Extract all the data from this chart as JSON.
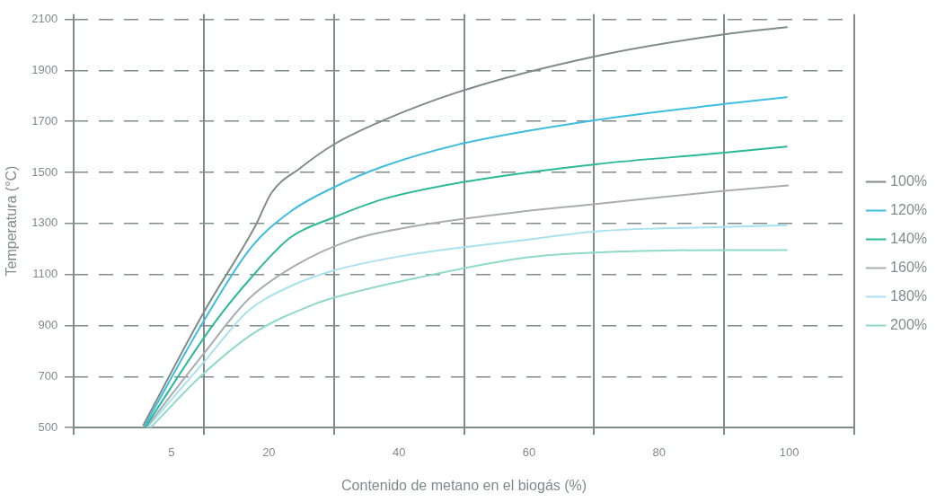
{
  "chart_data": {
    "type": "line",
    "xlabel": "Contenido de metano en el biogás (%)",
    "ylabel": "Temperatura (°C)",
    "xlim": [
      -10,
      110
    ],
    "xticks": [
      {
        "value": -10,
        "label": null
      },
      5,
      {
        "value": 10,
        "label": null
      },
      20,
      {
        "value": 30,
        "label": null
      },
      40,
      {
        "value": 50,
        "label": null
      },
      60,
      {
        "value": 70,
        "label": null
      },
      80,
      {
        "value": 90,
        "label": null
      },
      100,
      {
        "value": 110,
        "label": null
      }
    ],
    "ylim": [
      500,
      2120
    ],
    "yticks": [
      500,
      700,
      900,
      1100,
      1300,
      1500,
      1700,
      1900,
      2100
    ],
    "grid": true,
    "legend": "right",
    "marker": "none",
    "line_style": "solid",
    "series": [
      {
        "name": "100%",
        "color": "#7f8c8a",
        "x": [
          0.7,
          10.1,
          17.9,
          20.4,
          24.8,
          30,
          37.4,
          50.1,
          70.2,
          90,
          99.6
        ],
        "values": [
          510,
          957,
          1290,
          1420,
          1517,
          1610,
          1702,
          1823,
          1955,
          2041,
          2069
        ]
      },
      {
        "name": "120%",
        "color": "#3dbde0",
        "x": [
          0.9,
          10.1,
          17.4,
          23.4,
          30,
          37.4,
          50.1,
          70.2,
          90,
          99.6
        ],
        "values": [
          507,
          923,
          1210,
          1348,
          1442,
          1522,
          1615,
          1705,
          1768,
          1795
        ]
      },
      {
        "name": "140%",
        "color": "#2bb99a",
        "x": [
          1.0,
          11.6,
          17.9,
          23.3,
          30,
          37.4,
          50.1,
          70.2,
          90,
          99.6
        ],
        "values": [
          503,
          909,
          1106,
          1245,
          1324,
          1394,
          1463,
          1532,
          1577,
          1601
        ]
      },
      {
        "name": "160%",
        "color": "#a9acb0",
        "x": [
          1.2,
          10.1,
          16.8,
          23.7,
          32.5,
          41.6,
          60.7,
          70.2,
          90,
          99.8
        ],
        "values": [
          503,
          794,
          1002,
          1130,
          1234,
          1286,
          1352,
          1376,
          1428,
          1449
        ]
      },
      {
        "name": "180%",
        "color": "#a8e2f0",
        "x": [
          1.3,
          10.1,
          16.8,
          22.7,
          29.6,
          41.0,
          60.2,
          70.2,
          90,
          99.6
        ],
        "values": [
          500,
          760,
          957,
          1047,
          1113,
          1175,
          1238,
          1269,
          1286,
          1293
        ]
      },
      {
        "name": "200%",
        "color": "#8ed9c8",
        "x": [
          1.8,
          10.1,
          17.9,
          27.1,
          30,
          40.6,
          60.1,
          70.2,
          90,
          99.6
        ],
        "values": [
          500,
          715,
          874,
          985,
          1009,
          1075,
          1168,
          1186,
          1196,
          1196
        ]
      }
    ]
  }
}
